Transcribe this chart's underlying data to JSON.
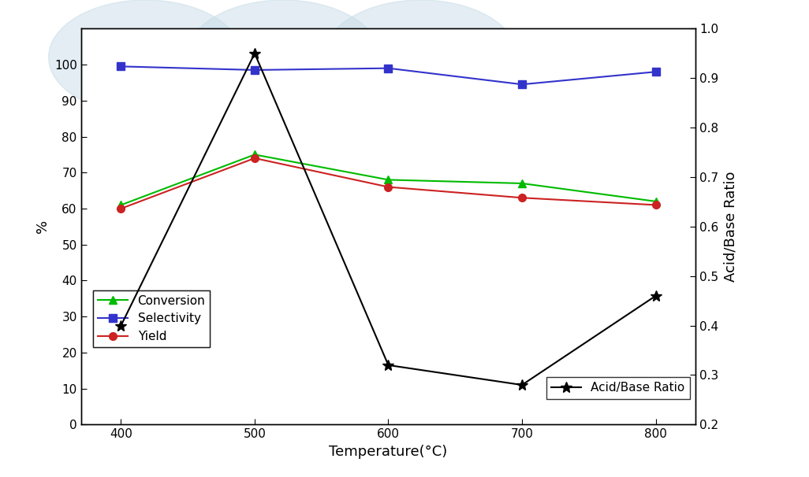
{
  "temperatures": [
    400,
    500,
    600,
    700,
    800
  ],
  "conversion": [
    61,
    75,
    68,
    67,
    62
  ],
  "selectivity": [
    99.5,
    98.5,
    99.0,
    94.5,
    98.0
  ],
  "yield": [
    60,
    74,
    66,
    63,
    61
  ],
  "acid_base_ratio": [
    0.4,
    0.95,
    0.32,
    0.28,
    0.46
  ],
  "conversion_color": "#00bb00",
  "selectivity_color": "#3333cc",
  "yield_color": "#cc2222",
  "acid_base_color": "#000000",
  "ylabel_left": "%",
  "ylabel_right": "Acid/Base Ratio",
  "xlabel": "Temperature(°C)",
  "ylim_left": [
    0,
    110
  ],
  "ylim_right": [
    0.2,
    1.0
  ],
  "yticks_left": [
    0,
    10,
    20,
    30,
    40,
    50,
    60,
    70,
    80,
    90,
    100
  ],
  "yticks_right": [
    0.2,
    0.3,
    0.4,
    0.5,
    0.6,
    0.7,
    0.8,
    0.9,
    1.0
  ],
  "background_color": "#ffffff",
  "fig_width": 10.26,
  "fig_height": 6.06
}
